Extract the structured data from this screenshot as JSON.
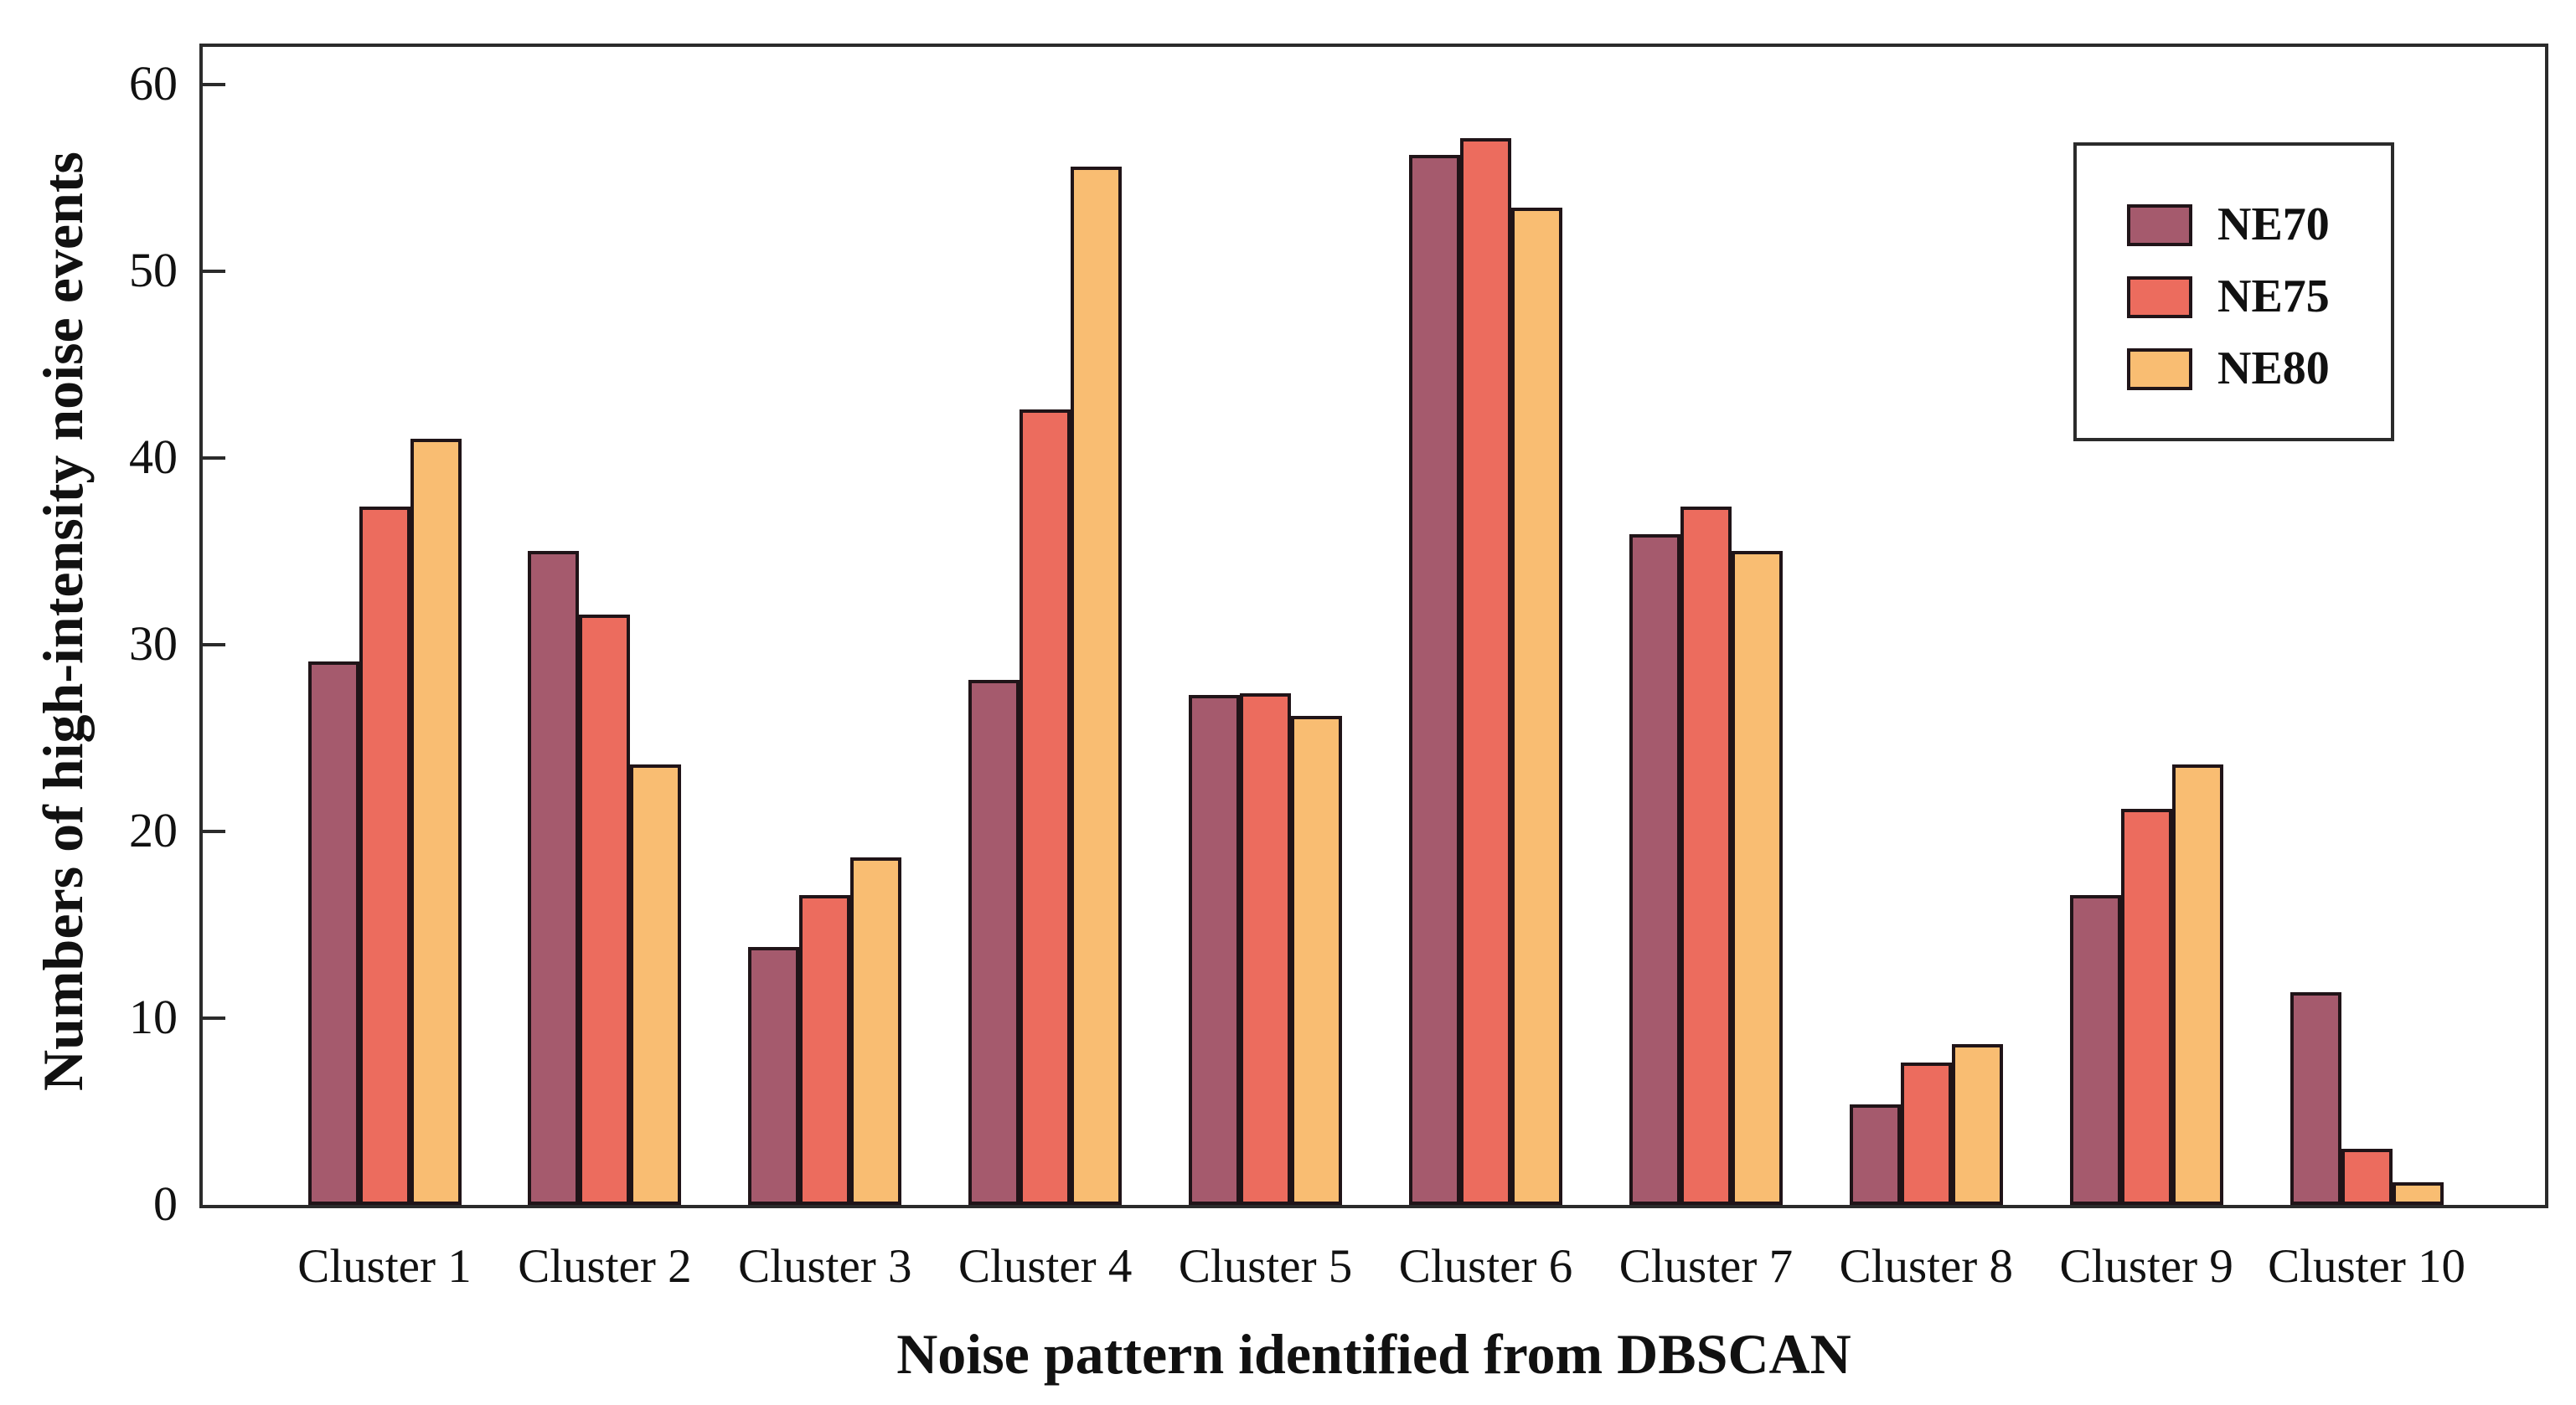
{
  "chart_data": {
    "type": "bar",
    "title": "",
    "xlabel": "Noise pattern identified from DBSCAN",
    "ylabel": "Numbers of high-intensity noise events",
    "categories": [
      "Cluster 1",
      "Cluster 2",
      "Cluster 3",
      "Cluster 4",
      "Cluster 5",
      "Cluster 6",
      "Cluster 7",
      "Cluster 8",
      "Cluster 9",
      "Cluster 10"
    ],
    "series": [
      {
        "name": "NE70",
        "color": "#A55A6D",
        "values": [
          29.1,
          35.0,
          13.8,
          28.1,
          27.3,
          56.2,
          35.9,
          5.4,
          16.6,
          11.4
        ]
      },
      {
        "name": "NE75",
        "color": "#EC6C5E",
        "values": [
          37.4,
          31.6,
          16.6,
          42.6,
          27.4,
          57.1,
          37.4,
          7.6,
          21.2,
          3.0
        ]
      },
      {
        "name": "NE80",
        "color": "#F9BD72",
        "values": [
          41.0,
          23.6,
          18.6,
          55.6,
          26.2,
          53.4,
          35.0,
          8.6,
          23.6,
          1.2
        ]
      }
    ],
    "yticks": [
      0,
      10,
      20,
      30,
      40,
      50,
      60
    ],
    "ylim": [
      0,
      62
    ],
    "grid": false,
    "legend_position": "top-right",
    "axis_color": "#2B2B2B",
    "bar_border_color": "#201418"
  }
}
